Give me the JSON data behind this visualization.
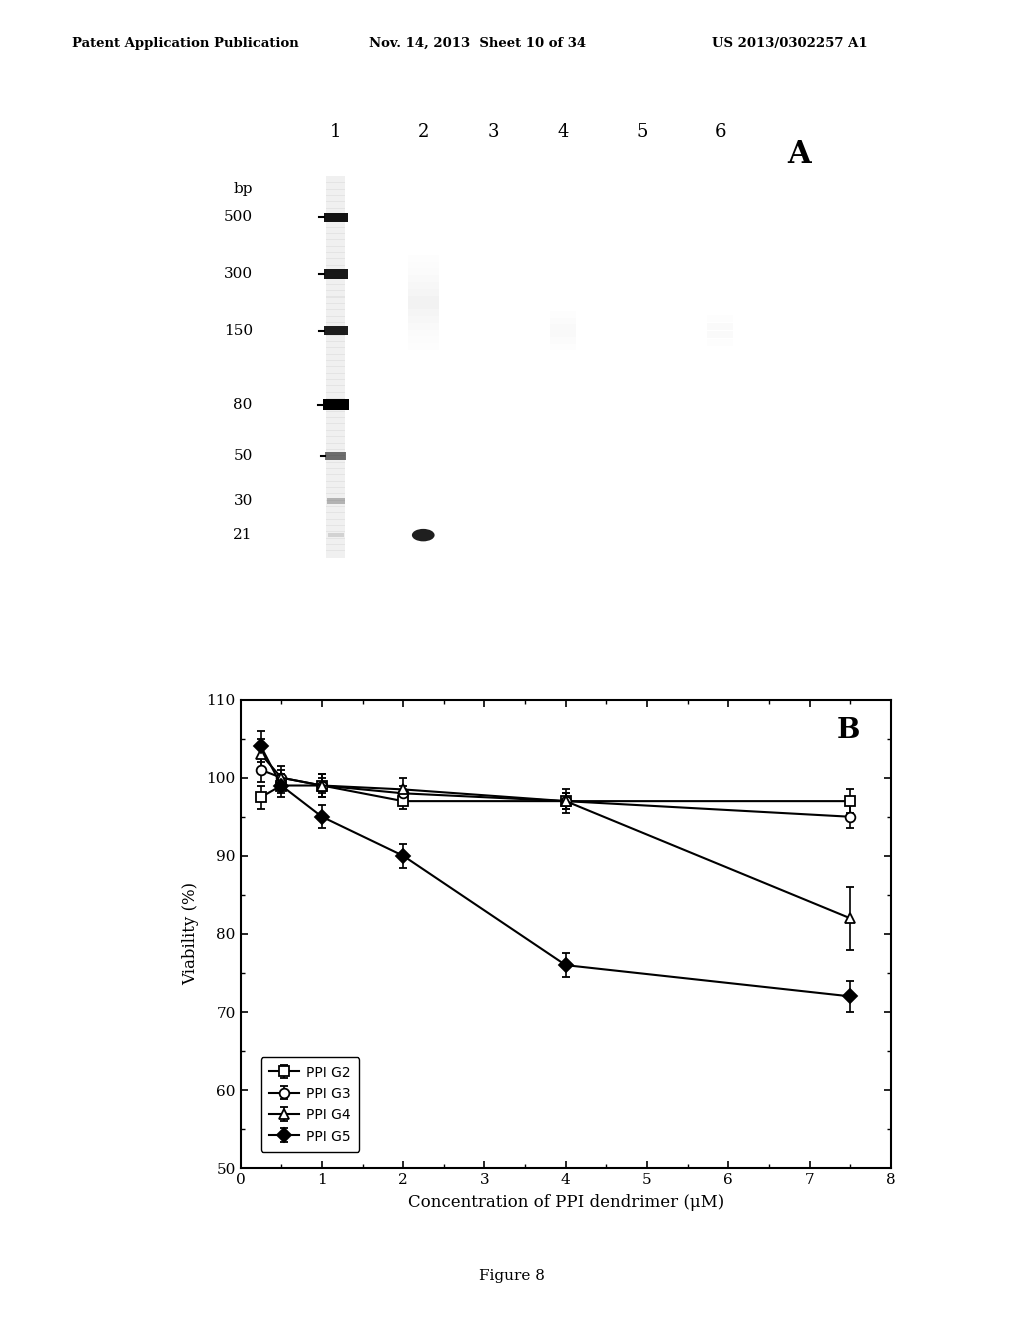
{
  "header_left": "Patent Application Publication",
  "header_mid": "Nov. 14, 2013  Sheet 10 of 34",
  "header_right": "US 2013/0302257 A1",
  "panel_A_label": "A",
  "panel_B_label": "B",
  "figure_label": "Figure 8",
  "gel_lanes": [
    "1",
    "2",
    "3",
    "4",
    "5",
    "6"
  ],
  "gel_markers": [
    500,
    300,
    150,
    80,
    50,
    30,
    21
  ],
  "gel_bp_label": "bp",
  "plot_xlabel": "Concentration of PPI dendrimer (μM)",
  "plot_ylabel": "Viability (%)",
  "plot_ylim": [
    50,
    110
  ],
  "plot_xlim": [
    0,
    8
  ],
  "plot_xticks": [
    0,
    1,
    2,
    3,
    4,
    5,
    6,
    7,
    8
  ],
  "plot_yticks": [
    50,
    60,
    70,
    80,
    90,
    100,
    110
  ],
  "series": [
    {
      "label": "PPI G2",
      "x": [
        0.25,
        0.5,
        1,
        2,
        4,
        7.5
      ],
      "y": [
        97.5,
        99,
        99,
        97,
        97,
        97
      ],
      "yerr": [
        1.5,
        1.0,
        1.0,
        1.0,
        1.0,
        1.5
      ],
      "marker": "s",
      "filled": false,
      "color": "black",
      "linewidth": 1.5
    },
    {
      "label": "PPI G3",
      "x": [
        0.25,
        0.5,
        1,
        2,
        4,
        7.5
      ],
      "y": [
        101,
        100,
        99,
        98,
        97,
        95
      ],
      "yerr": [
        1.5,
        1.0,
        1.5,
        1.0,
        1.0,
        1.5
      ],
      "marker": "o",
      "filled": false,
      "color": "black",
      "linewidth": 1.5
    },
    {
      "label": "PPI G4",
      "x": [
        0.25,
        0.5,
        1,
        2,
        4,
        7.5
      ],
      "y": [
        103,
        100,
        99,
        98.5,
        97,
        82
      ],
      "yerr": [
        2.0,
        1.5,
        1.5,
        1.5,
        1.5,
        4.0
      ],
      "marker": "^",
      "filled": false,
      "color": "black",
      "linewidth": 1.5
    },
    {
      "label": "PPI G5",
      "x": [
        0.25,
        0.5,
        1,
        2,
        4,
        7.5
      ],
      "y": [
        104,
        99,
        95,
        90,
        76,
        72
      ],
      "yerr": [
        2.0,
        1.5,
        1.5,
        1.5,
        1.5,
        2.0
      ],
      "marker": "D",
      "filled": true,
      "color": "black",
      "linewidth": 1.5
    }
  ],
  "background_color": "white"
}
